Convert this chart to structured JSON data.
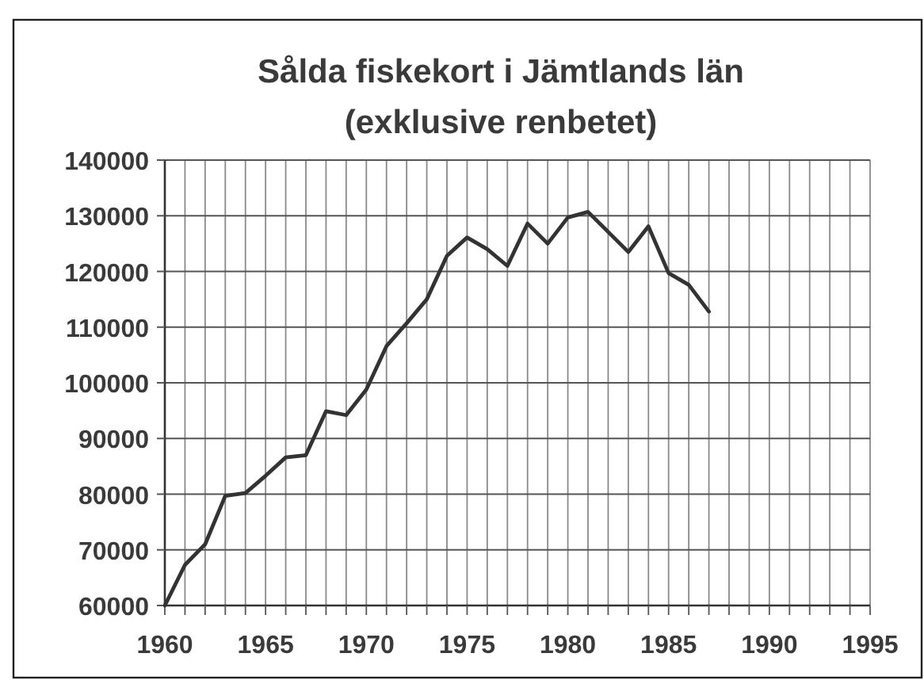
{
  "chart_data": {
    "type": "line",
    "title": "Sålda fiskekort i Jämtlands län",
    "subtitle": "(exklusive renbetet)",
    "x": [
      1960,
      1961,
      1962,
      1963,
      1964,
      1965,
      1966,
      1967,
      1968,
      1969,
      1970,
      1971,
      1972,
      1973,
      1974,
      1975,
      1976,
      1977,
      1978,
      1979,
      1980,
      1981,
      1982,
      1983,
      1984,
      1985,
      1986,
      1987
    ],
    "series": [
      {
        "color": "#333333",
        "values": [
          60000,
          67300,
          71000,
          79700,
          80200,
          83300,
          86600,
          87000,
          94900,
          94200,
          98800,
          106600,
          110700,
          115000,
          122800,
          126100,
          124000,
          121000,
          128600,
          125000,
          129700,
          130700,
          127100,
          123500,
          128100,
          119700,
          117600,
          112800
        ]
      }
    ],
    "xlim": [
      1960,
      1995
    ],
    "xticks": [
      1960,
      {
        "value": 1961,
        "label": null
      },
      {
        "value": 1962,
        "label": null
      },
      {
        "value": 1963,
        "label": null
      },
      {
        "value": 1964,
        "label": null
      },
      1965,
      {
        "value": 1966,
        "label": null
      },
      {
        "value": 1967,
        "label": null
      },
      {
        "value": 1968,
        "label": null
      },
      {
        "value": 1969,
        "label": null
      },
      1970,
      {
        "value": 1971,
        "label": null
      },
      {
        "value": 1972,
        "label": null
      },
      {
        "value": 1973,
        "label": null
      },
      {
        "value": 1974,
        "label": null
      },
      1975,
      {
        "value": 1976,
        "label": null
      },
      {
        "value": 1977,
        "label": null
      },
      {
        "value": 1978,
        "label": null
      },
      {
        "value": 1979,
        "label": null
      },
      1980,
      {
        "value": 1981,
        "label": null
      },
      {
        "value": 1982,
        "label": null
      },
      {
        "value": 1983,
        "label": null
      },
      {
        "value": 1984,
        "label": null
      },
      1985,
      {
        "value": 1986,
        "label": null
      },
      {
        "value": 1987,
        "label": null
      },
      {
        "value": 1988,
        "label": null
      },
      {
        "value": 1989,
        "label": null
      },
      1990,
      {
        "value": 1991,
        "label": null
      },
      {
        "value": 1992,
        "label": null
      },
      {
        "value": 1993,
        "label": null
      },
      {
        "value": 1994,
        "label": null
      },
      1995
    ],
    "ylim": [
      60000,
      140000
    ],
    "yticks": [
      60000,
      70000,
      80000,
      90000,
      100000,
      110000,
      120000,
      130000,
      140000
    ],
    "grid": true
  }
}
